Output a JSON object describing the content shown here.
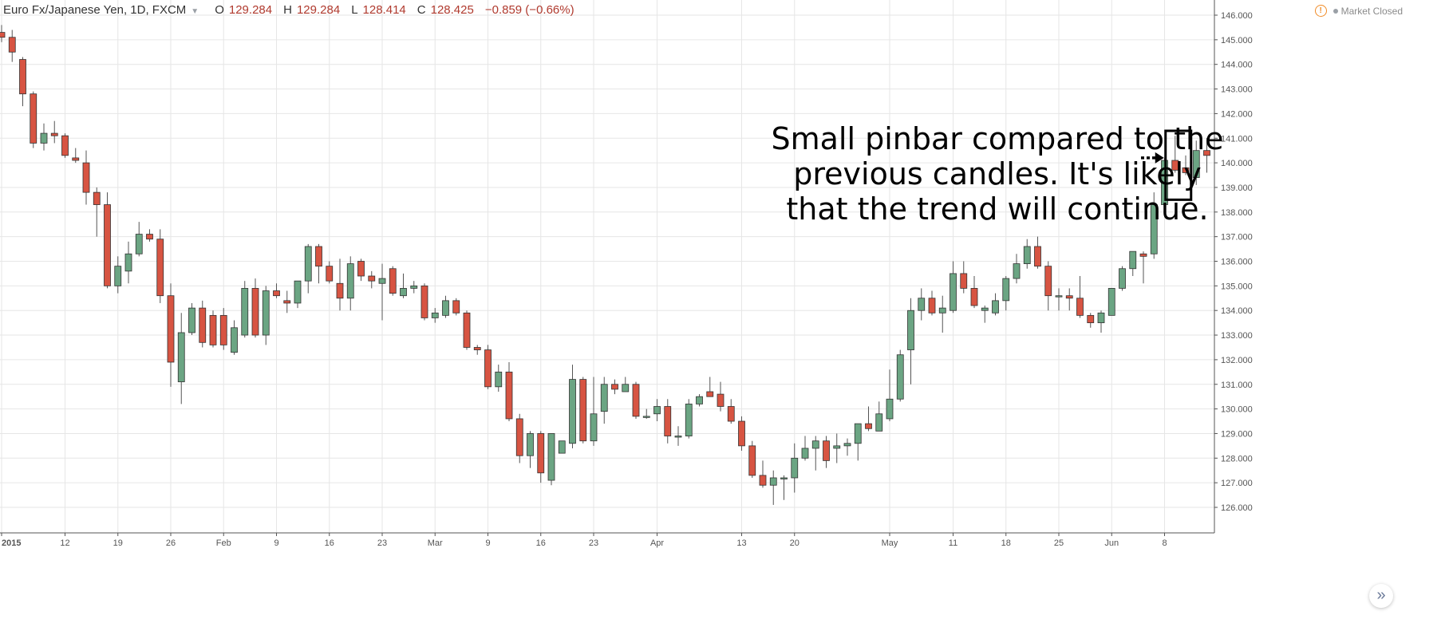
{
  "legend": {
    "symbol": "Euro Fx/Japanese Yen, 1D, FXCM",
    "o_label": "O",
    "o_value": "129.284",
    "h_label": "H",
    "h_value": "129.284",
    "l_label": "L",
    "l_value": "128.414",
    "c_label": "C",
    "c_value": "128.425",
    "change": "−0.859 (−0.66%)"
  },
  "status": {
    "text": "Market Closed",
    "icon": "warning-circle-icon"
  },
  "annotation": {
    "lines": [
      "Small pinbar compared to the",
      "previous candles. It's likely",
      "that the trend will continue."
    ]
  },
  "scroll_button": {
    "glyph": "»",
    "icon": "double-chevron-right-icon"
  },
  "colors": {
    "up": "#6ba583",
    "down": "#d75442",
    "wick": "#555555",
    "grid": "#e6e6e6"
  },
  "chart_data": {
    "type": "candlestick",
    "y_axis": {
      "min": 125.5,
      "max": 146.3,
      "position": "right",
      "ticks": [
        126,
        127,
        128,
        129,
        130,
        131,
        132,
        133,
        134,
        135,
        136,
        137,
        138,
        139,
        140,
        141,
        142,
        143,
        144,
        145,
        146
      ],
      "tick_labels": [
        "126.000",
        "127.000",
        "128.000",
        "129.000",
        "130.000",
        "131.000",
        "132.000",
        "133.000",
        "134.000",
        "135.000",
        "136.000",
        "137.000",
        "138.000",
        "139.000",
        "140.000",
        "141.000",
        "142.000",
        "143.000",
        "144.000",
        "145.000",
        "146.000"
      ]
    },
    "x_axis": {
      "labels": [
        {
          "text": "2015",
          "index": 0,
          "bold": true
        },
        {
          "text": "12",
          "index": 6
        },
        {
          "text": "19",
          "index": 11
        },
        {
          "text": "26",
          "index": 16
        },
        {
          "text": "Feb",
          "index": 21
        },
        {
          "text": "9",
          "index": 26
        },
        {
          "text": "16",
          "index": 31
        },
        {
          "text": "23",
          "index": 36
        },
        {
          "text": "Mar",
          "index": 41
        },
        {
          "text": "9",
          "index": 46
        },
        {
          "text": "16",
          "index": 51
        },
        {
          "text": "23",
          "index": 56
        },
        {
          "text": "Apr",
          "index": 62
        },
        {
          "text": "13",
          "index": 70
        },
        {
          "text": "20",
          "index": 75
        },
        {
          "text": "May",
          "index": 84
        },
        {
          "text": "11",
          "index": 90
        },
        {
          "text": "18",
          "index": 95
        },
        {
          "text": "25",
          "index": 100
        },
        {
          "text": "Jun",
          "index": 105
        },
        {
          "text": "8",
          "index": 110
        }
      ]
    },
    "grid": true,
    "candles": [
      [
        145.3,
        145.6,
        144.9,
        145.1
      ],
      [
        145.1,
        145.4,
        144.1,
        144.5
      ],
      [
        144.2,
        144.3,
        142.3,
        142.8
      ],
      [
        142.8,
        142.9,
        140.6,
        140.8
      ],
      [
        140.8,
        141.6,
        140.5,
        141.2
      ],
      [
        141.2,
        141.7,
        140.8,
        141.1
      ],
      [
        141.1,
        141.2,
        140.2,
        140.3
      ],
      [
        140.2,
        140.6,
        140.0,
        140.1
      ],
      [
        140.0,
        140.5,
        138.3,
        138.8
      ],
      [
        138.8,
        139.0,
        137.0,
        138.3
      ],
      [
        138.3,
        138.8,
        134.9,
        135.0
      ],
      [
        135.0,
        136.2,
        134.7,
        135.8
      ],
      [
        135.6,
        136.8,
        135.1,
        136.3
      ],
      [
        136.3,
        137.6,
        136.2,
        137.1
      ],
      [
        137.1,
        137.3,
        136.8,
        136.9
      ],
      [
        136.9,
        137.3,
        134.3,
        134.6
      ],
      [
        134.6,
        135.1,
        130.9,
        131.9
      ],
      [
        131.1,
        133.9,
        130.2,
        133.1
      ],
      [
        133.1,
        134.3,
        133.0,
        134.1
      ],
      [
        134.1,
        134.4,
        132.5,
        132.7
      ],
      [
        133.8,
        134.0,
        132.5,
        132.6
      ],
      [
        133.8,
        134.1,
        132.4,
        132.6
      ],
      [
        132.3,
        133.6,
        132.2,
        133.3
      ],
      [
        133.0,
        135.2,
        132.9,
        134.9
      ],
      [
        134.9,
        135.3,
        132.9,
        133.0
      ],
      [
        133.0,
        135.0,
        132.6,
        134.8
      ],
      [
        134.8,
        135.1,
        134.5,
        134.6
      ],
      [
        134.4,
        134.8,
        133.9,
        134.3
      ],
      [
        134.3,
        135.2,
        134.1,
        135.2
      ],
      [
        135.2,
        136.7,
        134.7,
        136.6
      ],
      [
        136.6,
        136.7,
        135.1,
        135.8
      ],
      [
        135.8,
        136.0,
        135.1,
        135.2
      ],
      [
        135.1,
        136.1,
        134.0,
        134.5
      ],
      [
        134.5,
        136.2,
        134.0,
        135.9
      ],
      [
        136.0,
        136.1,
        135.2,
        135.4
      ],
      [
        135.4,
        135.6,
        134.9,
        135.2
      ],
      [
        135.1,
        135.9,
        133.6,
        135.3
      ],
      [
        135.7,
        135.8,
        134.6,
        134.7
      ],
      [
        134.6,
        135.5,
        134.5,
        134.9
      ],
      [
        134.9,
        135.2,
        134.7,
        135.0
      ],
      [
        135.0,
        135.1,
        133.6,
        133.7
      ],
      [
        133.7,
        134.1,
        133.5,
        133.9
      ],
      [
        133.8,
        134.6,
        133.7,
        134.4
      ],
      [
        134.4,
        134.5,
        133.8,
        133.9
      ],
      [
        133.9,
        134.0,
        132.4,
        132.5
      ],
      [
        132.5,
        132.6,
        132.2,
        132.4
      ],
      [
        132.4,
        132.6,
        130.8,
        130.9
      ],
      [
        130.9,
        131.8,
        130.7,
        131.5
      ],
      [
        131.5,
        131.9,
        129.5,
        129.6
      ],
      [
        129.6,
        129.8,
        127.8,
        128.1
      ],
      [
        128.1,
        129.1,
        127.6,
        129.0
      ],
      [
        129.0,
        129.1,
        127.0,
        127.4
      ],
      [
        127.1,
        128.9,
        126.9,
        129.0
      ],
      [
        128.2,
        128.7,
        128.2,
        128.7
      ],
      [
        128.6,
        131.8,
        128.4,
        131.2
      ],
      [
        131.2,
        131.3,
        128.6,
        128.7
      ],
      [
        128.7,
        131.3,
        128.5,
        129.8
      ],
      [
        129.9,
        131.3,
        129.4,
        131.0
      ],
      [
        131.0,
        131.2,
        130.6,
        130.8
      ],
      [
        130.7,
        131.3,
        130.7,
        131.0
      ],
      [
        131.0,
        131.1,
        129.6,
        129.7
      ],
      [
        129.7,
        130.0,
        129.6,
        129.7
      ],
      [
        129.8,
        130.4,
        129.5,
        130.1
      ],
      [
        130.1,
        130.4,
        128.6,
        128.9
      ],
      [
        128.9,
        129.3,
        128.5,
        128.9
      ],
      [
        128.9,
        130.4,
        128.8,
        130.2
      ],
      [
        130.2,
        130.6,
        130.1,
        130.5
      ],
      [
        130.7,
        131.3,
        130.6,
        130.5
      ],
      [
        130.6,
        131.1,
        129.9,
        130.1
      ],
      [
        130.1,
        130.4,
        129.4,
        129.5
      ],
      [
        129.5,
        129.7,
        128.3,
        128.5
      ],
      [
        128.5,
        128.7,
        127.2,
        127.3
      ],
      [
        127.3,
        127.9,
        126.8,
        126.9
      ],
      [
        126.9,
        127.5,
        126.1,
        127.2
      ],
      [
        127.2,
        127.3,
        126.3,
        127.2
      ],
      [
        127.2,
        128.6,
        126.6,
        128.0
      ],
      [
        128.0,
        128.9,
        127.9,
        128.4
      ],
      [
        128.4,
        128.9,
        127.5,
        128.7
      ],
      [
        128.7,
        128.9,
        127.6,
        127.9
      ],
      [
        128.4,
        129.0,
        127.8,
        128.5
      ],
      [
        128.5,
        128.8,
        128.1,
        128.6
      ],
      [
        128.6,
        129.4,
        127.9,
        129.4
      ],
      [
        129.4,
        130.1,
        129.1,
        129.2
      ],
      [
        129.1,
        130.3,
        129.1,
        129.8
      ],
      [
        129.6,
        131.6,
        129.5,
        130.4
      ],
      [
        130.4,
        132.4,
        130.3,
        132.2
      ],
      [
        132.4,
        134.5,
        131.0,
        134.0
      ],
      [
        134.0,
        134.9,
        133.6,
        134.5
      ],
      [
        134.5,
        134.8,
        133.8,
        133.9
      ],
      [
        133.9,
        134.6,
        133.1,
        134.1
      ],
      [
        134.0,
        136.0,
        133.9,
        135.5
      ],
      [
        135.5,
        136.0,
        134.7,
        134.9
      ],
      [
        134.9,
        135.4,
        134.1,
        134.2
      ],
      [
        134.0,
        134.2,
        133.5,
        134.1
      ],
      [
        133.9,
        134.7,
        133.8,
        134.4
      ],
      [
        134.4,
        135.4,
        134.0,
        135.3
      ],
      [
        135.3,
        136.3,
        135.1,
        135.9
      ],
      [
        135.9,
        136.9,
        135.7,
        136.6
      ],
      [
        136.6,
        137.0,
        135.7,
        135.8
      ],
      [
        135.8,
        136.0,
        134.0,
        134.6
      ],
      [
        134.6,
        134.9,
        134.0,
        134.6
      ],
      [
        134.6,
        134.9,
        134.0,
        134.5
      ],
      [
        134.5,
        135.4,
        133.7,
        133.8
      ],
      [
        133.8,
        133.9,
        133.3,
        133.5
      ],
      [
        133.5,
        134.0,
        133.1,
        133.9
      ],
      [
        133.8,
        134.9,
        133.8,
        134.9
      ],
      [
        134.9,
        135.8,
        134.8,
        135.7
      ],
      [
        135.7,
        136.4,
        135.4,
        136.4
      ],
      [
        136.3,
        136.4,
        135.1,
        136.2
      ],
      [
        136.3,
        138.8,
        136.1,
        138.3
      ],
      [
        138.3,
        140.2,
        137.9,
        140.1
      ],
      [
        140.1,
        141.1,
        139.6,
        139.7
      ],
      [
        139.8,
        140.3,
        139.5,
        139.6
      ],
      [
        139.4,
        140.9,
        139.1,
        140.5
      ],
      [
        140.5,
        141.0,
        139.6,
        140.3
      ]
    ]
  }
}
